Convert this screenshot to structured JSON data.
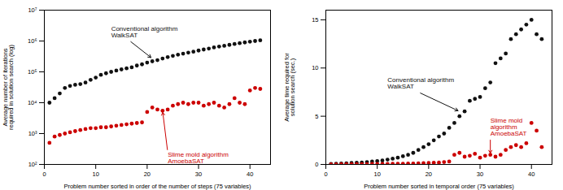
{
  "chart_data": [
    {
      "type": "scatter",
      "log": "y",
      "x": [
        1,
        2,
        3,
        4,
        5,
        6,
        7,
        8,
        9,
        10,
        11,
        12,
        13,
        14,
        15,
        16,
        17,
        18,
        19,
        20,
        21,
        22,
        23,
        24,
        25,
        26,
        27,
        28,
        29,
        30,
        31,
        32,
        33,
        34,
        35,
        36,
        37,
        38,
        39,
        40,
        41,
        42
      ],
      "series": [
        {
          "color": "#111111",
          "marker": "circle",
          "values": [
            10000,
            14000,
            20000,
            30000,
            35000,
            38000,
            40000,
            45000,
            55000,
            65000,
            80000,
            90000,
            100000,
            110000,
            120000,
            130000,
            140000,
            160000,
            175000,
            200000,
            220000,
            240000,
            270000,
            300000,
            330000,
            360000,
            390000,
            420000,
            450000,
            490000,
            530000,
            570000,
            620000,
            660000,
            700000,
            750000,
            800000,
            850000,
            900000,
            950000,
            1000000,
            1050000
          ]
        },
        {
          "color": "#cc0000",
          "marker": "circle",
          "values": [
            500,
            800,
            900,
            1000,
            1100,
            1200,
            1300,
            1400,
            1500,
            1500,
            1600,
            1600,
            1700,
            1800,
            1900,
            2000,
            2100,
            2200,
            2300,
            5000,
            7000,
            6000,
            5500,
            6000,
            8000,
            9000,
            10000,
            9000,
            10000,
            10000,
            8000,
            9000,
            10000,
            8000,
            7000,
            9000,
            14000,
            10000,
            9000,
            25000,
            30000,
            28000
          ]
        }
      ],
      "xlabel": "Problem number sorted in order of the number of steps (75 variables)",
      "ylabel": "Average number of iterations\nrequired in solution search (log)",
      "xlim": [
        0,
        44
      ],
      "xticks": [
        0,
        10,
        20,
        30,
        40
      ],
      "ylim": [
        100,
        10000000
      ],
      "yticks": [
        {
          "value": 100,
          "label": "10²"
        },
        {
          "value": 1000,
          "label": "10³"
        },
        {
          "value": 10000,
          "label": "10⁴"
        },
        {
          "value": 100000,
          "label": "10⁵"
        },
        {
          "value": 1000000,
          "label": "10⁶"
        },
        {
          "value": 10000000,
          "label": "10⁷"
        }
      ],
      "grid": false,
      "annotations": [
        {
          "text": "Conventional algorithm\nWalkSAT",
          "x": 21,
          "y": 270000,
          "text_x": 13,
          "text_y": 3000000,
          "color": "#111111"
        },
        {
          "text": "Slime mold algorithm\nAmoebaSAT",
          "x": 23,
          "y": 5500,
          "text_x": 24,
          "text_y": 250,
          "color": "#cc0000"
        }
      ]
    },
    {
      "type": "scatter",
      "x": [
        1,
        2,
        3,
        4,
        5,
        6,
        7,
        8,
        9,
        10,
        11,
        12,
        13,
        14,
        15,
        16,
        17,
        18,
        19,
        20,
        21,
        22,
        23,
        24,
        25,
        26,
        27,
        28,
        29,
        30,
        31,
        32,
        33,
        34,
        35,
        36,
        37,
        38,
        39,
        40,
        41,
        42
      ],
      "series": [
        {
          "color": "#111111",
          "marker": "circle",
          "values": [
            0.05,
            0.08,
            0.1,
            0.12,
            0.15,
            0.18,
            0.2,
            0.25,
            0.3,
            0.35,
            0.4,
            0.5,
            0.6,
            0.7,
            0.85,
            1.0,
            1.2,
            1.5,
            1.8,
            2.1,
            2.5,
            2.9,
            3.2,
            3.8,
            4.3,
            5.0,
            5.5,
            6.6,
            6.8,
            7.0,
            7.9,
            8.5,
            10.5,
            11.0,
            11.5,
            13.0,
            13.5,
            14.0,
            14.5,
            15.0,
            13.5,
            13.0
          ]
        },
        {
          "color": "#cc0000",
          "marker": "circle",
          "values": [
            0.01,
            0.01,
            0.02,
            0.02,
            0.03,
            0.03,
            0.04,
            0.04,
            0.05,
            0.05,
            0.06,
            0.06,
            0.07,
            0.08,
            0.08,
            0.09,
            0.1,
            0.12,
            0.13,
            0.15,
            0.18,
            0.2,
            0.25,
            0.3,
            1.0,
            1.2,
            0.8,
            0.9,
            1.1,
            0.7,
            0.9,
            1.0,
            0.8,
            1.0,
            1.5,
            1.8,
            2.0,
            1.8,
            2.2,
            4.3,
            3.5,
            1.8
          ]
        }
      ],
      "xlabel": "Problem number sorted in temporal order (75 variables)",
      "ylabel": "Average time required for\nsolution search (sec.)",
      "xlim": [
        0,
        44
      ],
      "xticks": [
        0,
        10,
        20,
        30,
        40
      ],
      "ylim": [
        0,
        16
      ],
      "yticks": [
        0,
        5,
        10,
        15
      ],
      "grid": false,
      "annotations": [
        {
          "text": "Conventional algorithm\nWalkSAT",
          "x": 26,
          "y": 5.5,
          "text_x": 12,
          "text_y": 9.0,
          "color": "#111111"
        },
        {
          "text": "Slime mold\nalgorithm\nAmoebaSAT",
          "x": 32,
          "y": 1.0,
          "text_x": 32,
          "text_y": 4.8,
          "color": "#cc0000"
        }
      ]
    }
  ]
}
